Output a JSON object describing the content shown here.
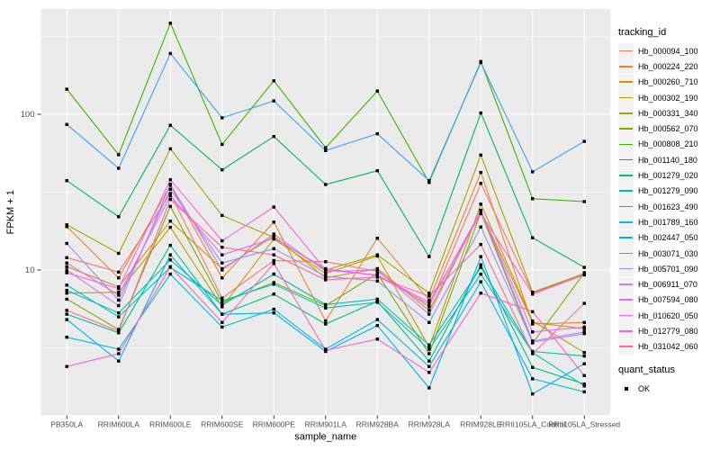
{
  "figure": {
    "background": "#FFFFFF",
    "panel_background": "#EBEBEB",
    "grid_color": "#FFFFFF",
    "axis_text_color": "#4D4D4D",
    "tick_mark_color": "#333333",
    "marker_color": "#000000"
  },
  "y_axis": {
    "title": "FPKM + 1",
    "tick_labels": [
      "100",
      "10"
    ],
    "tick_values": [
      100,
      10
    ]
  },
  "x_axis": {
    "title": "sample_name"
  },
  "legend": {
    "tracking_title": "tracking_id",
    "quant_title": "quant_status",
    "quant_items": [
      {
        "label": "OK",
        "marker": "black-square"
      }
    ]
  },
  "chart_data": {
    "type": "line",
    "x_scale": "categorical",
    "y_scale": "log10",
    "ylabel": "FPKM + 1",
    "xlabel": "sample_name",
    "ylim": [
      1.16,
      474
    ],
    "major_gridlines": [
      10,
      100
    ],
    "minor_gridlines": [
      3.1623,
      31.623,
      316.23
    ],
    "grid": true,
    "legend_position": "right",
    "point_marker": "filled-black-square (quant_status OK)",
    "categories": [
      "PB350LA",
      "RRIM600LA",
      "RRIM600LE",
      "RRIM600SE",
      "RRIM600PE",
      "RRIM901LA",
      "RRIM928BA",
      "RRIM928LA",
      "RRIM928LE",
      "RRII105LA_Control",
      "RRII105LA_Stressed"
    ],
    "series": [
      {
        "name": "Hb_000094_100",
        "color": "#F8766D",
        "values": [
          12,
          9.7,
          31,
          6.6,
          11.5,
          11.3,
          9.8,
          5.8,
          36,
          7.1,
          9.4
        ]
      },
      {
        "name": "Hb_000224_220",
        "color": "#EA8331",
        "values": [
          19,
          8.9,
          35,
          8.9,
          20.3,
          4.7,
          16,
          6.4,
          42.3,
          4.5,
          4.6
        ]
      },
      {
        "name": "Hb_000260_710",
        "color": "#D89000",
        "values": [
          10.5,
          7.8,
          20.6,
          10.2,
          16.5,
          8.9,
          10.2,
          5.5,
          23.8,
          4.6,
          4.2
        ]
      },
      {
        "name": "Hb_000302_190",
        "color": "#C09B00",
        "values": [
          7.1,
          7.2,
          18.8,
          5.8,
          15.8,
          9.5,
          12.3,
          3.2,
          26.5,
          4.7,
          2.95
        ]
      },
      {
        "name": "Hb_000331_340",
        "color": "#A3A500",
        "values": [
          19.5,
          12.8,
          60,
          22.4,
          16.2,
          10,
          12.5,
          7.1,
          54.7,
          7.2,
          9.5
        ]
      },
      {
        "name": "Hb_000562_070",
        "color": "#7CAE00",
        "values": [
          6.5,
          4.15,
          25.6,
          6.2,
          8.3,
          5.9,
          9.5,
          2.9,
          23.4,
          3.4,
          9.6
        ]
      },
      {
        "name": "Hb_000808_210",
        "color": "#39B600",
        "values": [
          145,
          55,
          385,
          64,
          164,
          61,
          141,
          36.5,
          218,
          28.7,
          27.5
        ]
      },
      {
        "name": "Hb_001140_180",
        "color": "#00BB4E",
        "values": [
          37.5,
          22,
          85,
          44,
          72,
          35.4,
          43.4,
          12.2,
          102,
          16.1,
          10.4
        ]
      },
      {
        "name": "Hb_001279_020",
        "color": "#00BF7D",
        "values": [
          5.2,
          3.95,
          14.4,
          5.2,
          7,
          4.5,
          6.3,
          2.6,
          10.8,
          2.37,
          1.85
        ]
      },
      {
        "name": "Hb_001279_090",
        "color": "#00C1A3",
        "values": [
          7.4,
          5.3,
          11.6,
          5.95,
          9.4,
          6,
          6.5,
          3.3,
          10.4,
          3,
          2.8
        ]
      },
      {
        "name": "Hb_001623_490",
        "color": "#00BFC4",
        "values": [
          8,
          5,
          10.4,
          6.35,
          8.1,
          5.7,
          6.2,
          3.1,
          9.4,
          2.95,
          1.8
        ]
      },
      {
        "name": "Hb_001789_160",
        "color": "#00BAE0",
        "values": [
          3.7,
          3.1,
          9.4,
          4.3,
          5.6,
          3.1,
          4.8,
          2.4,
          8.4,
          2,
          1.65
        ]
      },
      {
        "name": "Hb_002447_050",
        "color": "#00B0F6",
        "values": [
          4.8,
          2.6,
          12.5,
          5.2,
          5.3,
          3,
          4.4,
          1.75,
          12.2,
          1.6,
          2.5
        ]
      },
      {
        "name": "Hb_003071_030",
        "color": "#35A2FF",
        "values": [
          86,
          45,
          246,
          95,
          122,
          58.5,
          75,
          37.5,
          215,
          42.7,
          67
        ]
      },
      {
        "name": "Hb_005701_090",
        "color": "#9590FF",
        "values": [
          14.8,
          6.4,
          33,
          11.1,
          13.7,
          9.1,
          8.5,
          4.6,
          18.9,
          3.44,
          3.9
        ]
      },
      {
        "name": "Hb_006911_070",
        "color": "#C77CFF",
        "values": [
          10,
          5.9,
          35.5,
          10,
          17,
          9.8,
          10,
          5.2,
          24.2,
          3.5,
          4
        ]
      },
      {
        "name": "Hb_007594_080",
        "color": "#E76BF3",
        "values": [
          11.1,
          6.9,
          30,
          12.5,
          16,
          10.2,
          9.2,
          6,
          24,
          4,
          4.3
        ]
      },
      {
        "name": "Hb_010620_050",
        "color": "#FA62DB",
        "values": [
          9.6,
          7.6,
          38,
          15.4,
          25.4,
          10,
          9.3,
          6.2,
          23,
          7,
          9.3
        ]
      },
      {
        "name": "Hb_012779_080",
        "color": "#FF62BC",
        "values": [
          2.4,
          2.9,
          10.5,
          4.6,
          11,
          3.05,
          3.6,
          2.2,
          7.1,
          5.4,
          2.1
        ]
      },
      {
        "name": "Hb_031042_060",
        "color": "#FF6A98",
        "values": [
          5.5,
          4.05,
          28.4,
          14,
          12.5,
          8.65,
          9,
          6.8,
          14.6,
          2.9,
          6.1
        ]
      }
    ]
  }
}
